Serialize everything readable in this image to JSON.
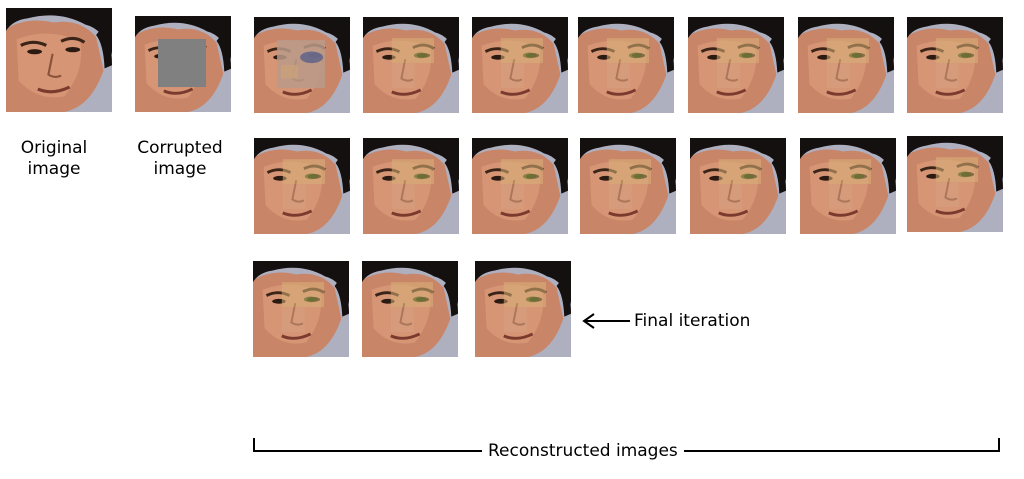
{
  "labels": {
    "original": [
      "Original",
      "image"
    ],
    "corrupted": [
      "Corrupted",
      "image"
    ],
    "final": "Final iteration",
    "reconstructed": "Reconstructed images"
  },
  "colors": {
    "skin": "#c98567",
    "skin_light": "#e0a382",
    "hair": "#141010",
    "background": "#aeb0c0",
    "mask": "#808080",
    "patch": "#d9b179"
  },
  "images": {
    "original": {
      "kind": "face"
    },
    "corrupted": {
      "kind": "face-masked"
    },
    "reconstructed": [
      {
        "kind": "face-noisy"
      },
      {
        "kind": "face-patched"
      },
      {
        "kind": "face-patched"
      },
      {
        "kind": "face-patched"
      },
      {
        "kind": "face-patched"
      },
      {
        "kind": "face-patched"
      },
      {
        "kind": "face-patched"
      },
      {
        "kind": "face-patched"
      },
      {
        "kind": "face-patched"
      },
      {
        "kind": "face-patched"
      },
      {
        "kind": "face-patched"
      },
      {
        "kind": "face-patched"
      },
      {
        "kind": "face-patched"
      },
      {
        "kind": "face-patched"
      },
      {
        "kind": "face-patched"
      },
      {
        "kind": "face-patched"
      },
      {
        "kind": "face-patched"
      }
    ]
  }
}
